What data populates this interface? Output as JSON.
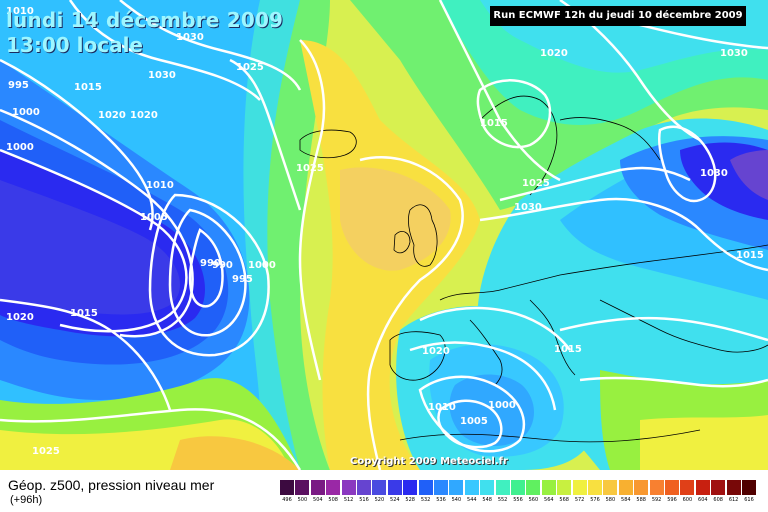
{
  "title": {
    "date": "lundi 14 décembre 2009",
    "time": "13:00 locale"
  },
  "run_info": "Run ECMWF 12h du jeudi 10 décembre 2009",
  "copyright": "Copyright 2009 Meteociel.fr",
  "parameter": "Géop. z500, pression niveau mer",
  "lead_time": "(+96h)",
  "isobar_labels": [
    "1010",
    "995",
    "990",
    "1000",
    "1000",
    "1015",
    "1020",
    "1020",
    "1030",
    "1030",
    "1025",
    "1010",
    "1005",
    "990",
    "995",
    "1000",
    "1015",
    "1020",
    "1025",
    "1025",
    "1020",
    "1015",
    "1025",
    "1030",
    "1030",
    "1030",
    "1015",
    "1020",
    "1010",
    "1005",
    "1000",
    "1015"
  ],
  "color_scale": {
    "values": [
      "496",
      "500",
      "504",
      "508",
      "512",
      "516",
      "520",
      "524",
      "528",
      "532",
      "536",
      "540",
      "544",
      "548",
      "552",
      "556",
      "560",
      "564",
      "568",
      "572",
      "576",
      "580",
      "584",
      "588",
      "592",
      "596",
      "600",
      "604",
      "608",
      "612",
      "616"
    ],
    "colors": [
      "#3c0a40",
      "#5a1060",
      "#7a1a84",
      "#9a28a6",
      "#8a38c0",
      "#6644d0",
      "#4a4ae0",
      "#3a3ae8",
      "#2a2af0",
      "#2060f8",
      "#2a88ff",
      "#30a8ff",
      "#38c8ff",
      "#40e0ee",
      "#40f0c0",
      "#40f090",
      "#60f060",
      "#98f040",
      "#c8f040",
      "#f0f040",
      "#f8e040",
      "#f8c840",
      "#f8b030",
      "#f89830",
      "#f88030",
      "#f06020",
      "#e04018",
      "#c82010",
      "#a01010",
      "#780808",
      "#500000"
    ]
  }
}
